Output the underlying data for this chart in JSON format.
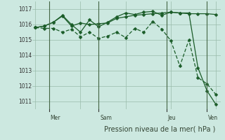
{
  "bg_color": "#cce8e0",
  "line_color": "#1a5c28",
  "grid_color": "#99bbaa",
  "xlabel": "Pression niveau de la mer( hPa )",
  "ylim": [
    1010.5,
    1017.5
  ],
  "yticks": [
    1011,
    1012,
    1013,
    1014,
    1015,
    1016,
    1017
  ],
  "line1_x": [
    0,
    1,
    2,
    3,
    4,
    5,
    6,
    7,
    8,
    9,
    10,
    11,
    12,
    13,
    14,
    15,
    16,
    17,
    18,
    19,
    20
  ],
  "line1_y": [
    1015.8,
    1015.9,
    1016.15,
    1016.55,
    1015.9,
    1016.1,
    1016.0,
    1016.05,
    1016.1,
    1016.4,
    1016.5,
    1016.6,
    1016.65,
    1016.7,
    1016.75,
    1016.8,
    1016.75,
    1016.7,
    1016.7,
    1016.7,
    1016.65
  ],
  "line2_x": [
    0,
    1,
    2,
    3,
    4,
    5,
    6,
    7,
    8,
    9,
    10,
    11,
    12,
    13,
    14,
    15,
    16,
    17,
    18,
    19,
    20
  ],
  "line2_y": [
    1015.8,
    1015.9,
    1016.15,
    1016.6,
    1016.0,
    1015.5,
    1016.3,
    1015.85,
    1016.15,
    1016.5,
    1016.75,
    1016.65,
    1016.8,
    1016.85,
    1016.6,
    1016.8,
    1016.75,
    1016.75,
    1013.2,
    1011.7,
    1010.8
  ],
  "line3_x": [
    0,
    1,
    2,
    3,
    4,
    5,
    6,
    7,
    8,
    9,
    10,
    11,
    12,
    13,
    14,
    15,
    16,
    17,
    18,
    19,
    20
  ],
  "line3_y": [
    1015.8,
    1015.75,
    1015.75,
    1015.5,
    1015.7,
    1015.2,
    1015.5,
    1015.1,
    1015.25,
    1015.5,
    1015.15,
    1015.75,
    1015.5,
    1016.2,
    1015.7,
    1014.95,
    1013.3,
    1015.0,
    1012.55,
    1012.15,
    1011.45
  ],
  "vlines_x": [
    1.5,
    7.0,
    14.5,
    19.0
  ],
  "day_labels": [
    "Mer",
    "Sam",
    "Jeu",
    "Ven"
  ],
  "xlim": [
    -0.3,
    20.5
  ]
}
